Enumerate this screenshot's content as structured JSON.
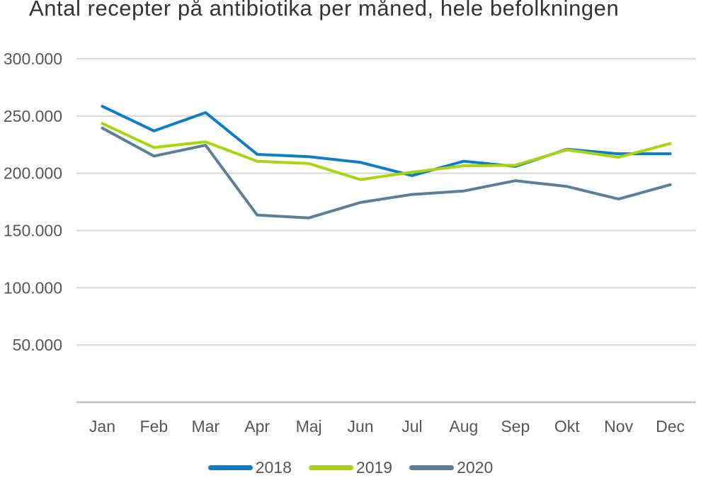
{
  "title": "Antal recepter på antibiotika per måned, hele befolkningen",
  "chart_data": {
    "type": "line",
    "title": "Antal recepter på antibiotika per måned, hele befolkningen",
    "categories": [
      "Jan",
      "Feb",
      "Mar",
      "Apr",
      "Maj",
      "Jun",
      "Jul",
      "Aug",
      "Sep",
      "Okt",
      "Nov",
      "Dec"
    ],
    "series": [
      {
        "name": "2018",
        "color": "#0e7dc4",
        "values": [
          258500,
          237000,
          253000,
          216500,
          214500,
          209500,
          198000,
          210500,
          206000,
          221000,
          217000,
          217000
        ]
      },
      {
        "name": "2019",
        "color": "#a9d411",
        "values": [
          243500,
          222500,
          227500,
          210500,
          208500,
          194500,
          201000,
          206500,
          207000,
          220500,
          214000,
          226000
        ]
      },
      {
        "name": "2020",
        "color": "#5b7e99",
        "values": [
          239500,
          215000,
          224500,
          163500,
          161000,
          174500,
          181500,
          184500,
          193500,
          188500,
          177500,
          190000
        ]
      }
    ],
    "xlabel": "",
    "ylabel": "",
    "ylim": [
      0,
      300000
    ],
    "y_ticks": [
      50000,
      100000,
      150000,
      200000,
      250000,
      300000
    ],
    "y_tick_labels": [
      "50.000",
      "100.000",
      "150.000",
      "200.000",
      "250.000",
      "300.000"
    ],
    "grid": "horizontal",
    "legend_position": "bottom"
  },
  "colors": {
    "background": "#ffffff",
    "gridline": "#d9d9d9",
    "axis_line": "#c3c3c3",
    "tick_label": "#555555",
    "title": "#333333",
    "legend_label": "#555555"
  }
}
